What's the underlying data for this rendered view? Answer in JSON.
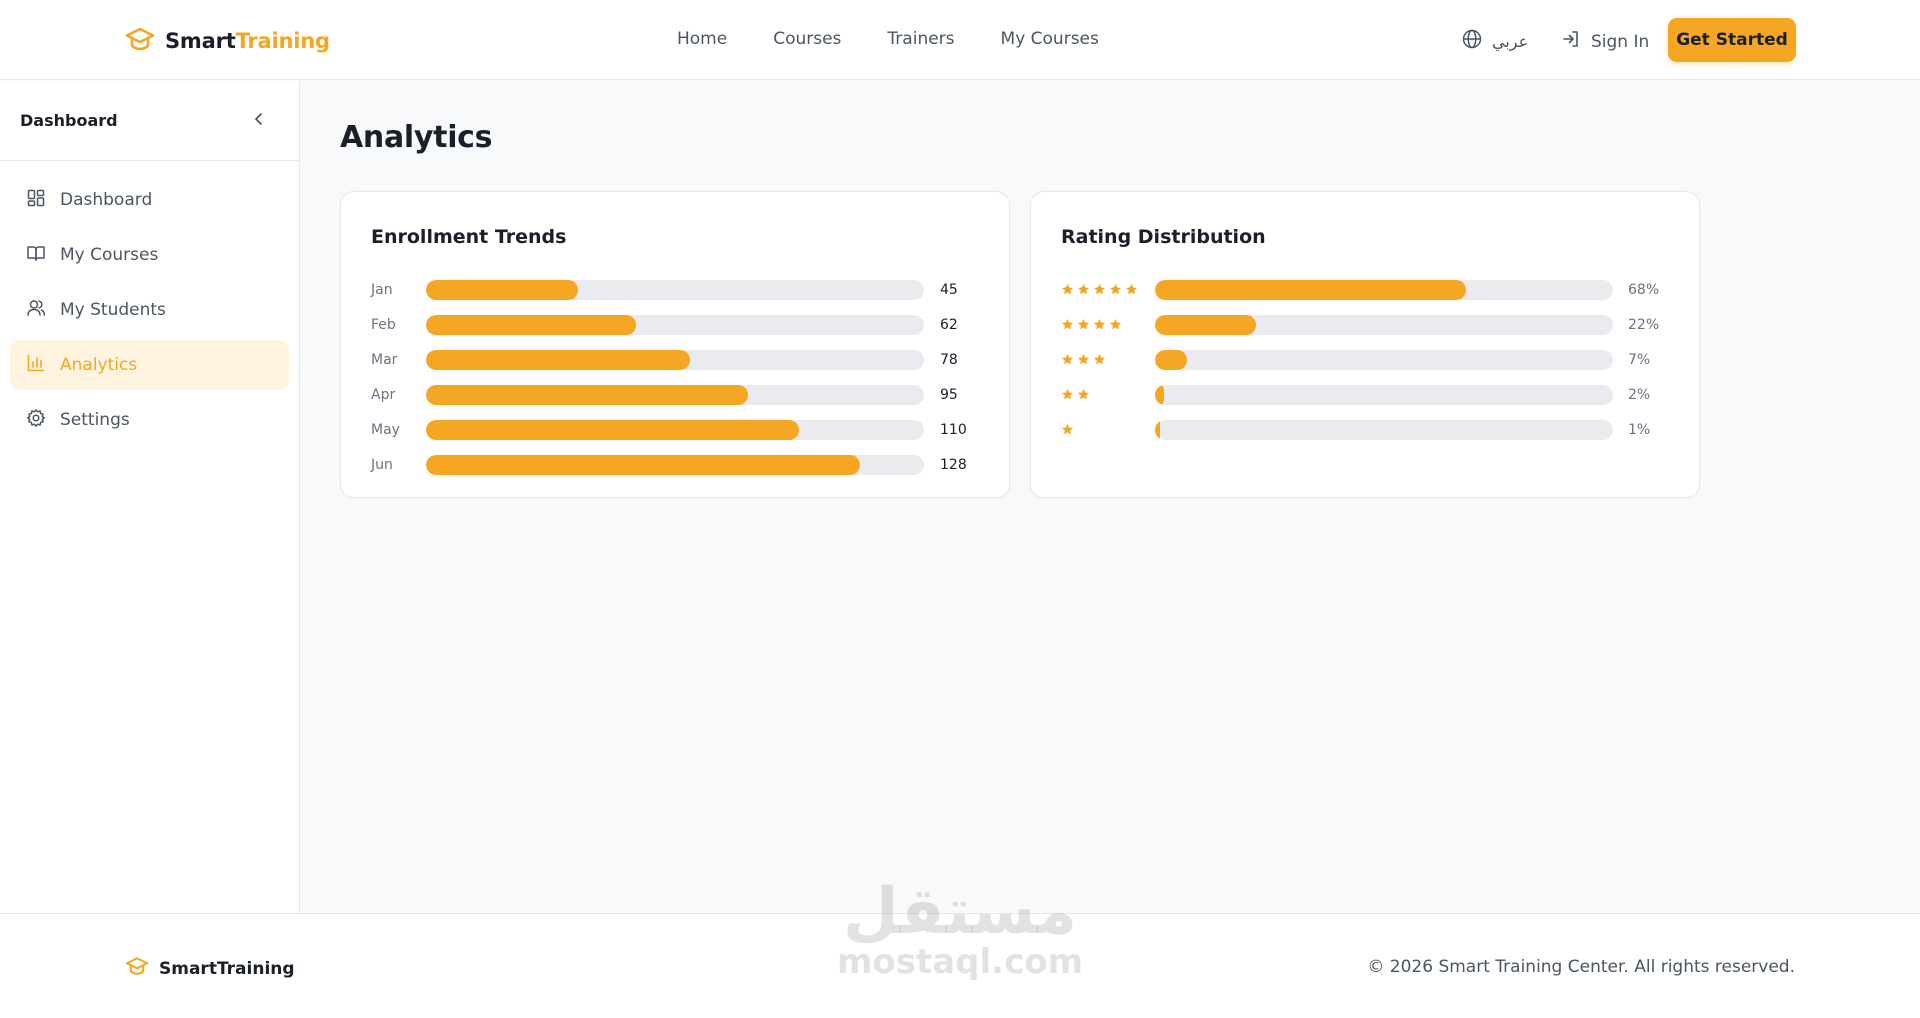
{
  "brand": {
    "name_part1": "Smart",
    "name_part2": "Training",
    "accent_color": "#f5a623",
    "icon": "graduation-cap-icon"
  },
  "nav": {
    "items": [
      "Home",
      "Courses",
      "Trainers",
      "My Courses"
    ],
    "language": "عربي",
    "sign_in": "Sign In",
    "get_started": "Get Started"
  },
  "sidebar": {
    "title": "Dashboard",
    "items": [
      {
        "label": "Dashboard",
        "icon": "dashboard-grid-icon",
        "active": false
      },
      {
        "label": "My Courses",
        "icon": "book-icon",
        "active": false
      },
      {
        "label": "My Students",
        "icon": "users-icon",
        "active": false
      },
      {
        "label": "Analytics",
        "icon": "bar-chart-icon",
        "active": true
      },
      {
        "label": "Settings",
        "icon": "gear-icon",
        "active": false
      }
    ]
  },
  "page": {
    "title": "Analytics"
  },
  "chart_data": [
    {
      "type": "bar",
      "title": "Enrollment Trends",
      "categories": [
        "Jan",
        "Feb",
        "Mar",
        "Apr",
        "May",
        "Jun"
      ],
      "values": [
        45,
        62,
        78,
        95,
        110,
        128
      ],
      "xlim": [
        0,
        147
      ]
    },
    {
      "type": "bar",
      "title": "Rating Distribution",
      "categories": [
        5,
        4,
        3,
        2,
        1
      ],
      "values": [
        68,
        22,
        7,
        2,
        1
      ],
      "value_labels": [
        "68%",
        "22%",
        "7%",
        "2%",
        "1%"
      ],
      "xlim": [
        0,
        100
      ]
    }
  ],
  "footer": {
    "brand": "SmartTraining",
    "copyright": "© 2026 Smart Training Center. All rights reserved."
  },
  "watermark": {
    "line1": "مستقل",
    "line2": "mostaql.com"
  }
}
